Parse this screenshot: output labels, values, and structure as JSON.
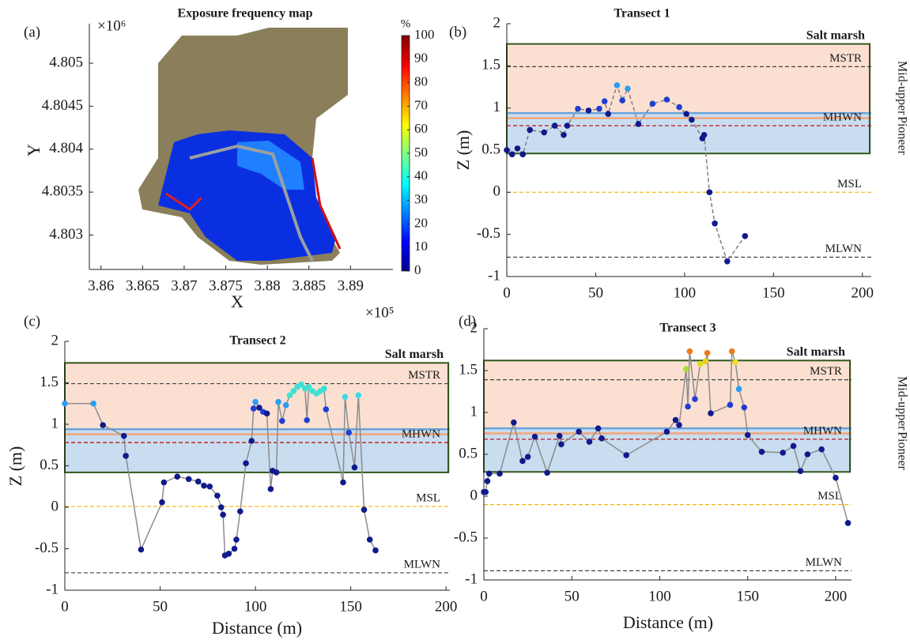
{
  "chart_data": [
    {
      "type": "map",
      "panel_label": "(a)",
      "title": "Exposure frequency map",
      "xlabel": "X",
      "ylabel": "Y",
      "x_multiplier": "×10⁵",
      "y_multiplier": "×10⁶",
      "xlim": [
        3.8586,
        3.8951
      ],
      "xticks": [
        3.86,
        3.865,
        3.87,
        3.875,
        3.88,
        3.885,
        3.89
      ],
      "ylim": [
        4.8026,
        4.80546
      ],
      "yticks": [
        4.803,
        4.8035,
        4.804,
        4.8045,
        4.805
      ],
      "colorbar": {
        "label": "%",
        "lim": [
          0,
          100
        ],
        "ticks": [
          0,
          10,
          20,
          30,
          40,
          50,
          60,
          70,
          80,
          90,
          100
        ],
        "colormap": "jet"
      }
    },
    {
      "type": "transect",
      "panel_label": "(b)",
      "title": "Transect 1",
      "ylabel": "Z (m)",
      "xlim": [
        0,
        205
      ],
      "xticks": [
        0,
        50,
        100,
        150,
        200
      ],
      "ylim": [
        -1,
        2
      ],
      "yticks": [
        -1,
        -0.5,
        0,
        0.5,
        1,
        1.5,
        2
      ],
      "line_style": "dashed",
      "line_color": "#7f7f7f",
      "zone": {
        "label": "Salt marsh",
        "color": "#34561a",
        "lim": [
          0.46,
          1.76
        ]
      },
      "bands": [
        {
          "name": "Mid-upper",
          "color": "#fbe0d2",
          "edge_color": "#f2a57a",
          "label_color": "#f07f30",
          "lim": [
            0.88,
            1.76
          ]
        },
        {
          "name": "Pioneer",
          "color": "#c9ddf0",
          "edge_color": "#6aa2d8",
          "label_color": "#2f8fd8",
          "lim": [
            0.46,
            0.94
          ]
        }
      ],
      "levels": [
        {
          "name": "MSTR",
          "value": 1.49,
          "color": "#404040"
        },
        {
          "name": "MHWN",
          "value": 0.79,
          "color": "#c00000"
        },
        {
          "name": "MSL",
          "value": 0.0,
          "color": "#f0b400"
        },
        {
          "name": "MLWN",
          "value": -0.77,
          "color": "#404040"
        }
      ],
      "x": [
        0,
        3,
        6,
        9,
        13,
        21,
        27,
        32,
        34,
        40,
        46,
        52,
        55,
        57,
        62,
        65,
        68,
        74,
        82,
        90,
        97,
        101,
        104,
        110,
        111,
        114,
        117,
        124,
        134
      ],
      "values": [
        0.5,
        0.45,
        0.52,
        0.45,
        0.74,
        0.71,
        0.79,
        0.68,
        0.79,
        0.99,
        0.97,
        0.99,
        1.08,
        0.93,
        1.27,
        1.09,
        1.23,
        0.81,
        1.05,
        1.1,
        1.01,
        0.93,
        0.86,
        0.64,
        0.68,
        0.0,
        -0.37,
        -0.82,
        -0.52
      ],
      "point_colors": [
        "#101a8c",
        "#101a8c",
        "#101a8c",
        "#101a8c",
        "#101a8c",
        "#101a8c",
        "#101a8c",
        "#101a8c",
        "#101a8c",
        "#1f3fd0",
        "#101a8c",
        "#1f3fd0",
        "#1f3fd0",
        "#101a8c",
        "#2a9df4",
        "#1f3fd0",
        "#2a9df4",
        "#101a8c",
        "#1f3fd0",
        "#1f3fd0",
        "#1f3fd0",
        "#101a8c",
        "#101a8c",
        "#101a8c",
        "#101a8c",
        "#101a8c",
        "#101a8c",
        "#101a8c",
        "#101a8c"
      ]
    },
    {
      "type": "transect",
      "panel_label": "(c)",
      "title": "Transect 2",
      "ylabel": "Z (m)",
      "xlabel": "Distance (m)",
      "xlim": [
        0,
        202
      ],
      "xticks": [
        0,
        50,
        100,
        150,
        200
      ],
      "ylim": [
        -1,
        2
      ],
      "yticks": [
        -1,
        -0.5,
        0,
        0.5,
        1,
        1.5,
        2
      ],
      "line_style": "solid",
      "line_color": "#8c8c8c",
      "zone": {
        "label": "Salt marsh",
        "color": "#34561a",
        "lim": [
          0.42,
          1.74
        ]
      },
      "bands": [
        {
          "name": "Mid-upper",
          "color": "#fbe0d2",
          "edge_color": "#f2a57a",
          "lim": [
            0.88,
            1.74
          ]
        },
        {
          "name": "Pioneer",
          "color": "#c9ddf0",
          "edge_color": "#6aa2d8",
          "lim": [
            0.42,
            0.94
          ]
        }
      ],
      "levels": [
        {
          "name": "MSTR",
          "value": 1.49,
          "color": "#404040"
        },
        {
          "name": "MHWN",
          "value": 0.78,
          "color": "#c00000"
        },
        {
          "name": "MSL",
          "value": 0.01,
          "color": "#f0b400"
        },
        {
          "name": "MLWN",
          "value": -0.79,
          "color": "#404040"
        }
      ],
      "x": [
        0,
        15,
        20,
        31,
        32,
        40,
        51,
        52,
        59,
        65,
        70,
        73,
        76,
        80,
        82,
        83,
        84,
        86,
        89,
        90,
        92,
        95,
        98,
        99,
        100,
        102,
        104,
        106,
        108,
        109,
        111,
        112,
        114,
        116,
        118,
        120,
        122,
        124,
        126,
        127,
        128,
        130,
        132,
        134,
        136,
        137,
        146,
        147,
        149,
        152,
        154,
        157,
        160,
        163
      ],
      "values": [
        1.25,
        1.25,
        0.99,
        0.86,
        0.62,
        -0.51,
        0.06,
        0.3,
        0.37,
        0.34,
        0.31,
        0.26,
        0.25,
        0.14,
        0.0,
        -0.09,
        -0.58,
        -0.56,
        -0.5,
        -0.39,
        -0.05,
        0.53,
        0.8,
        1.19,
        1.27,
        1.2,
        1.15,
        1.13,
        0.22,
        0.44,
        0.42,
        1.27,
        1.04,
        1.23,
        1.35,
        1.4,
        1.45,
        1.48,
        1.43,
        1.05,
        1.45,
        1.4,
        1.37,
        1.4,
        1.43,
        1.18,
        0.3,
        1.33,
        0.9,
        0.48,
        1.35,
        -0.03,
        -0.39,
        -0.52
      ],
      "point_colors": [
        "#2a9df4",
        "#2a9df4",
        "#101a8c",
        "#101a8c",
        "#101a8c",
        "#101a8c",
        "#101a8c",
        "#101a8c",
        "#101a8c",
        "#101a8c",
        "#101a8c",
        "#101a8c",
        "#101a8c",
        "#101a8c",
        "#101a8c",
        "#101a8c",
        "#101a8c",
        "#101a8c",
        "#101a8c",
        "#101a8c",
        "#101a8c",
        "#101a8c",
        "#101a8c",
        "#1f3fd0",
        "#2a9df4",
        "#101a8c",
        "#1f3fd0",
        "#101a8c",
        "#101a8c",
        "#101a8c",
        "#101a8c",
        "#2a9df4",
        "#1f3fd0",
        "#2a9df4",
        "#3fe0d0",
        "#3fe0d0",
        "#3fe0d0",
        "#3fe0d0",
        "#3fe0d0",
        "#1f3fd0",
        "#3fe0d0",
        "#3fe0d0",
        "#3fe0d0",
        "#3fe0d0",
        "#3fe0d0",
        "#1f3fd0",
        "#101a8c",
        "#3fd8e8",
        "#1f3fd0",
        "#101a8c",
        "#3fd8e8",
        "#101a8c",
        "#101a8c",
        "#101a8c"
      ]
    },
    {
      "type": "transect",
      "panel_label": "(d)",
      "title": "Transect 3",
      "xlabel": "Distance (m)",
      "xlim": [
        0,
        209
      ],
      "xticks": [
        0,
        50,
        100,
        150,
        200
      ],
      "ylim": [
        -1,
        2
      ],
      "yticks": [
        -1,
        -0.5,
        0,
        0.5,
        1,
        1.5,
        2
      ],
      "line_style": "solid",
      "line_color": "#8c8c8c",
      "zone": {
        "label": "Salt marsh",
        "color": "#34561a",
        "lim": [
          0.29,
          1.62
        ]
      },
      "bands": [
        {
          "name": "Mid-upper",
          "color": "#fbe0d2",
          "edge_color": "#f2a57a",
          "label_color": "#f07f30",
          "lim": [
            0.75,
            1.62
          ]
        },
        {
          "name": "Pioneer",
          "color": "#c9ddf0",
          "edge_color": "#6aa2d8",
          "label_color": "#2f8fd8",
          "lim": [
            0.29,
            0.81
          ]
        }
      ],
      "levels": [
        {
          "name": "MSTR",
          "value": 1.39,
          "color": "#404040"
        },
        {
          "name": "MHWN",
          "value": 0.68,
          "color": "#c00000"
        },
        {
          "name": "MSL",
          "value": -0.1,
          "color": "#f0b400"
        },
        {
          "name": "MLWN",
          "value": -0.89,
          "color": "#404040"
        }
      ],
      "x": [
        0,
        1,
        2,
        3,
        9,
        17,
        22,
        25,
        29,
        36,
        43,
        44,
        54,
        60,
        65,
        67,
        81,
        104,
        109,
        111,
        115,
        116,
        117,
        120,
        123,
        126,
        127,
        129,
        140,
        141,
        143,
        145,
        148,
        150,
        158,
        170,
        176,
        180,
        184,
        192,
        200,
        207
      ],
      "values": [
        0.05,
        0.05,
        0.18,
        0.27,
        0.27,
        0.88,
        0.42,
        0.47,
        0.71,
        0.28,
        0.72,
        0.62,
        0.77,
        0.65,
        0.81,
        0.69,
        0.49,
        0.77,
        0.91,
        0.85,
        1.52,
        1.07,
        1.73,
        1.16,
        1.58,
        1.61,
        1.71,
        0.99,
        1.09,
        1.73,
        1.6,
        1.28,
        1.06,
        0.73,
        0.53,
        0.52,
        0.6,
        0.3,
        0.5,
        0.56,
        0.22,
        -0.32
      ],
      "point_colors": [
        "#101a8c",
        "#101a8c",
        "#101a8c",
        "#101a8c",
        "#101a8c",
        "#101a8c",
        "#101a8c",
        "#101a8c",
        "#101a8c",
        "#101a8c",
        "#101a8c",
        "#101a8c",
        "#101a8c",
        "#101a8c",
        "#101a8c",
        "#101a8c",
        "#101a8c",
        "#101a8c",
        "#101a8c",
        "#101a8c",
        "#a8e030",
        "#1f3fd0",
        "#f07818",
        "#1f3fd0",
        "#d8e020",
        "#e8d020",
        "#f07818",
        "#101a8c",
        "#1f3fd0",
        "#f07818",
        "#f0e020",
        "#2a9df4",
        "#1f3fd0",
        "#101a8c",
        "#101a8c",
        "#101a8c",
        "#101a8c",
        "#101a8c",
        "#101a8c",
        "#101a8c",
        "#101a8c",
        "#101a8c"
      ]
    }
  ]
}
